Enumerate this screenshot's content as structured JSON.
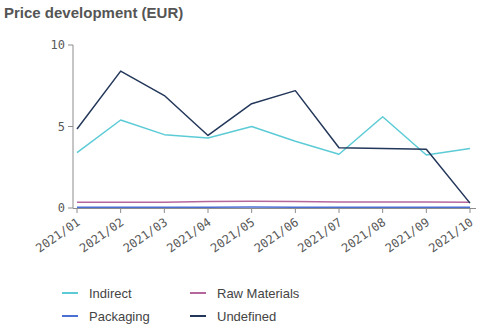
{
  "chart_data": {
    "type": "line",
    "title": "Price development (EUR)",
    "categories": [
      "2021/01",
      "2021/02",
      "2021/03",
      "2021/04",
      "2021/05",
      "2021/06",
      "2021/07",
      "2021/08",
      "2021/09",
      "2021/10"
    ],
    "series": [
      {
        "name": "Indirect",
        "color": "#5ccbd6",
        "values": [
          3.4,
          5.4,
          4.5,
          4.3,
          5.0,
          4.1,
          3.3,
          5.6,
          3.25,
          3.65
        ]
      },
      {
        "name": "Raw Materials",
        "color": "#b5679b",
        "values": [
          0.35,
          0.35,
          0.35,
          0.4,
          0.42,
          0.4,
          0.37,
          0.37,
          0.37,
          0.35
        ]
      },
      {
        "name": "Packaging",
        "color": "#4c6fd4",
        "values": [
          0.05,
          0.05,
          0.05,
          0.05,
          0.06,
          0.05,
          0.05,
          0.05,
          0.05,
          0.05
        ]
      },
      {
        "name": "Undefined",
        "color": "#23375a",
        "values": [
          4.85,
          8.4,
          6.9,
          4.45,
          6.4,
          7.2,
          3.7,
          3.65,
          3.6,
          0.3
        ]
      }
    ],
    "ylim": [
      0,
      10
    ],
    "yticks": [
      0,
      5,
      10
    ],
    "grid": false,
    "legend": "bottom"
  }
}
